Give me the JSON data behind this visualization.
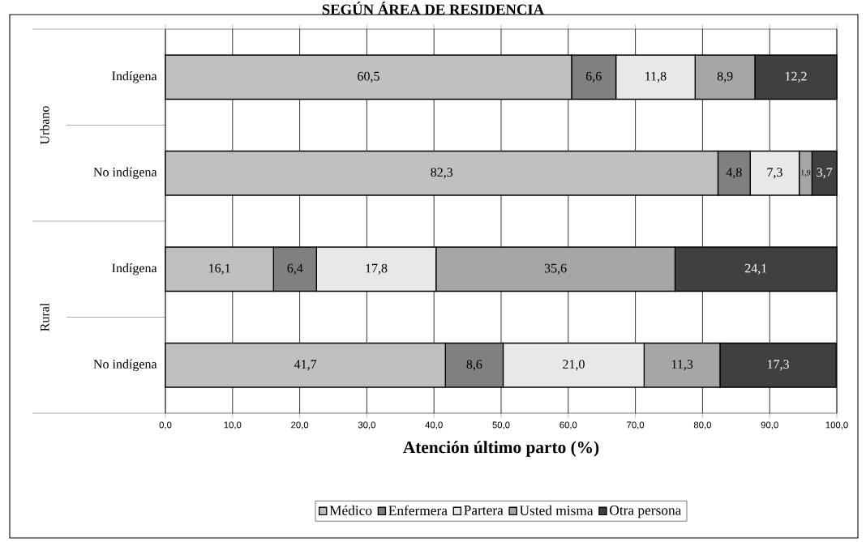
{
  "chart_data": {
    "type": "bar",
    "orientation": "horizontal",
    "stacked": true,
    "title": "SEGÚN ÁREA DE RESIDENCIA",
    "xlabel": "Atención último parto (%)",
    "categories": [
      "Indígena",
      "No indígena",
      "Indígena",
      "No indígena"
    ],
    "annotations": [
      "Urbano",
      "Rural"
    ],
    "series": [
      {
        "name": "Médico",
        "color": "#c0c0c0",
        "values": [
          60.5,
          82.3,
          16.1,
          41.7
        ],
        "value_labels": [
          "60,5",
          "82,3",
          "16,1",
          "41,7"
        ]
      },
      {
        "name": "Enfermera",
        "color": "#808080",
        "values": [
          6.6,
          4.8,
          6.4,
          8.6
        ],
        "value_labels": [
          "6,6",
          "4,8",
          "6,4",
          "8,6"
        ]
      },
      {
        "name": "Partera",
        "color": "#e8e8e8",
        "values": [
          11.8,
          7.3,
          17.8,
          21.0
        ],
        "value_labels": [
          "11,8",
          "7,3",
          "17,8",
          "21,0"
        ]
      },
      {
        "name": "Usted misma",
        "color": "#a6a6a6",
        "values": [
          8.9,
          1.9,
          35.6,
          11.3
        ],
        "value_labels": [
          "8,9",
          "1,9",
          "35,6",
          "11,3"
        ]
      },
      {
        "name": "Otra persona",
        "color": "#404040",
        "values": [
          12.2,
          3.7,
          24.1,
          17.3
        ],
        "value_labels": [
          "12,2",
          "3,7",
          "24,1",
          "17,3"
        ]
      }
    ],
    "xlim": [
      0,
      100
    ],
    "xticks": [
      {
        "value": 0,
        "label": "0,0"
      },
      {
        "value": 10,
        "label": "10,0"
      },
      {
        "value": 20,
        "label": "20,0"
      },
      {
        "value": 30,
        "label": "30,0"
      },
      {
        "value": 40,
        "label": "40,0"
      },
      {
        "value": 50,
        "label": "50,0"
      },
      {
        "value": 60,
        "label": "60,0"
      },
      {
        "value": 70,
        "label": "70,0"
      },
      {
        "value": 80,
        "label": "80,0"
      },
      {
        "value": 90,
        "label": "90,0"
      },
      {
        "value": 100,
        "label": "100,0"
      }
    ],
    "grid": "x",
    "legend": "bottom"
  }
}
